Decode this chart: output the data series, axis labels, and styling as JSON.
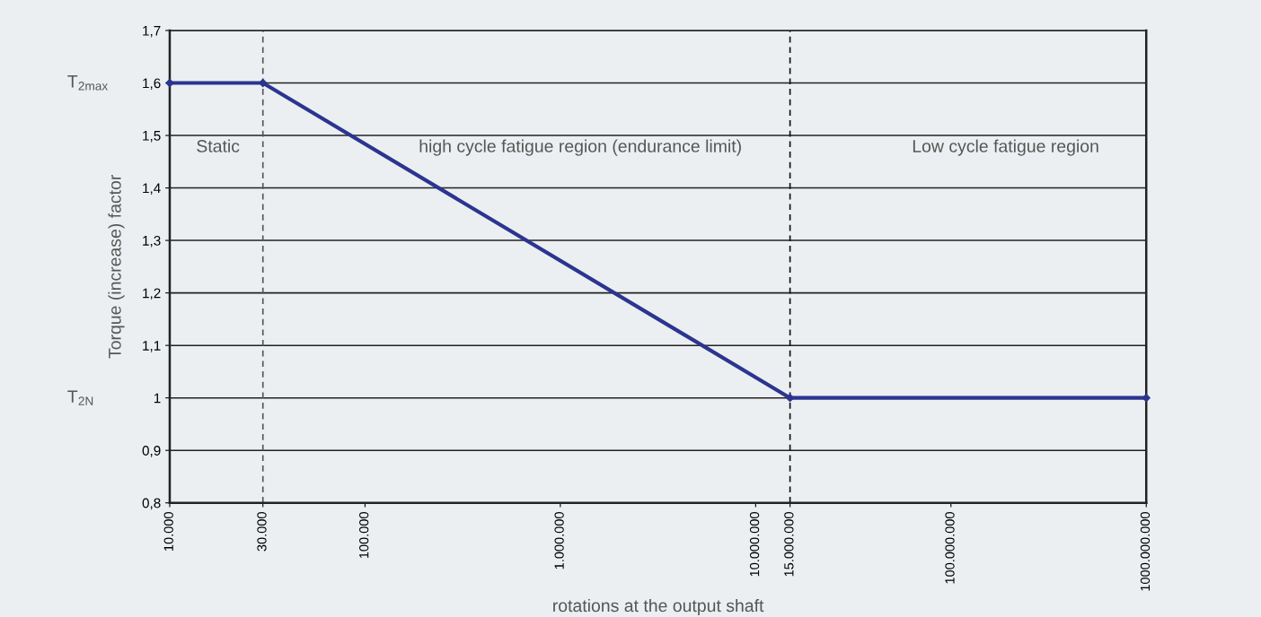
{
  "chart_data": {
    "type": "line",
    "xlabel": "rotations at the output shaft",
    "ylabel": "Torque (increase) factor",
    "log": "x",
    "x": [
      10000,
      30000,
      15000000,
      1000000000
    ],
    "series": [
      {
        "color": "#2b3590",
        "values": [
          1.6,
          1.6,
          1.0,
          1.0
        ]
      }
    ],
    "marker": "diamond",
    "line_style": "solid",
    "grid": "y",
    "xlim": [
      10000,
      1000000000
    ],
    "xticks": [
      {
        "value": 10000,
        "label": "10.000"
      },
      {
        "value": 30000,
        "label": "30.000"
      },
      {
        "value": 100000,
        "label": "100.000"
      },
      {
        "value": 1000000,
        "label": "1.000.000"
      },
      {
        "value": 10000000,
        "label": "10.000.000"
      },
      {
        "value": 15000000,
        "label": "15.000.000"
      },
      {
        "value": 100000000,
        "label": "100.000.000"
      },
      {
        "value": 1000000000,
        "label": "1000.000.000"
      }
    ],
    "ylim": [
      0.8,
      1.7
    ],
    "yticks": [
      {
        "value": 0.8,
        "label": "0,8"
      },
      {
        "value": 0.9,
        "label": "0,9"
      },
      {
        "value": 1.0,
        "label": "1"
      },
      {
        "value": 1.1,
        "label": "1,1"
      },
      {
        "value": 1.2,
        "label": "1,2"
      },
      {
        "value": 1.3,
        "label": "1,3"
      },
      {
        "value": 1.4,
        "label": "1,4"
      },
      {
        "value": 1.5,
        "label": "1,5"
      },
      {
        "value": 1.6,
        "label": "1,6"
      },
      {
        "value": 1.7,
        "label": "1,7"
      }
    ],
    "ref_lines": [
      {
        "axis": "x",
        "value": 30000,
        "label": null,
        "color": "#555555",
        "line_style": "dashed"
      },
      {
        "axis": "x",
        "value": 15000000,
        "label": null,
        "color": "#111111",
        "line_style": "dashed"
      }
    ],
    "annotations": [
      "T$_{2max}$",
      "T$_{2N}$",
      "Static",
      "high cycle fatigue region (endurance limit)",
      "Low cycle fatigue region"
    ]
  }
}
